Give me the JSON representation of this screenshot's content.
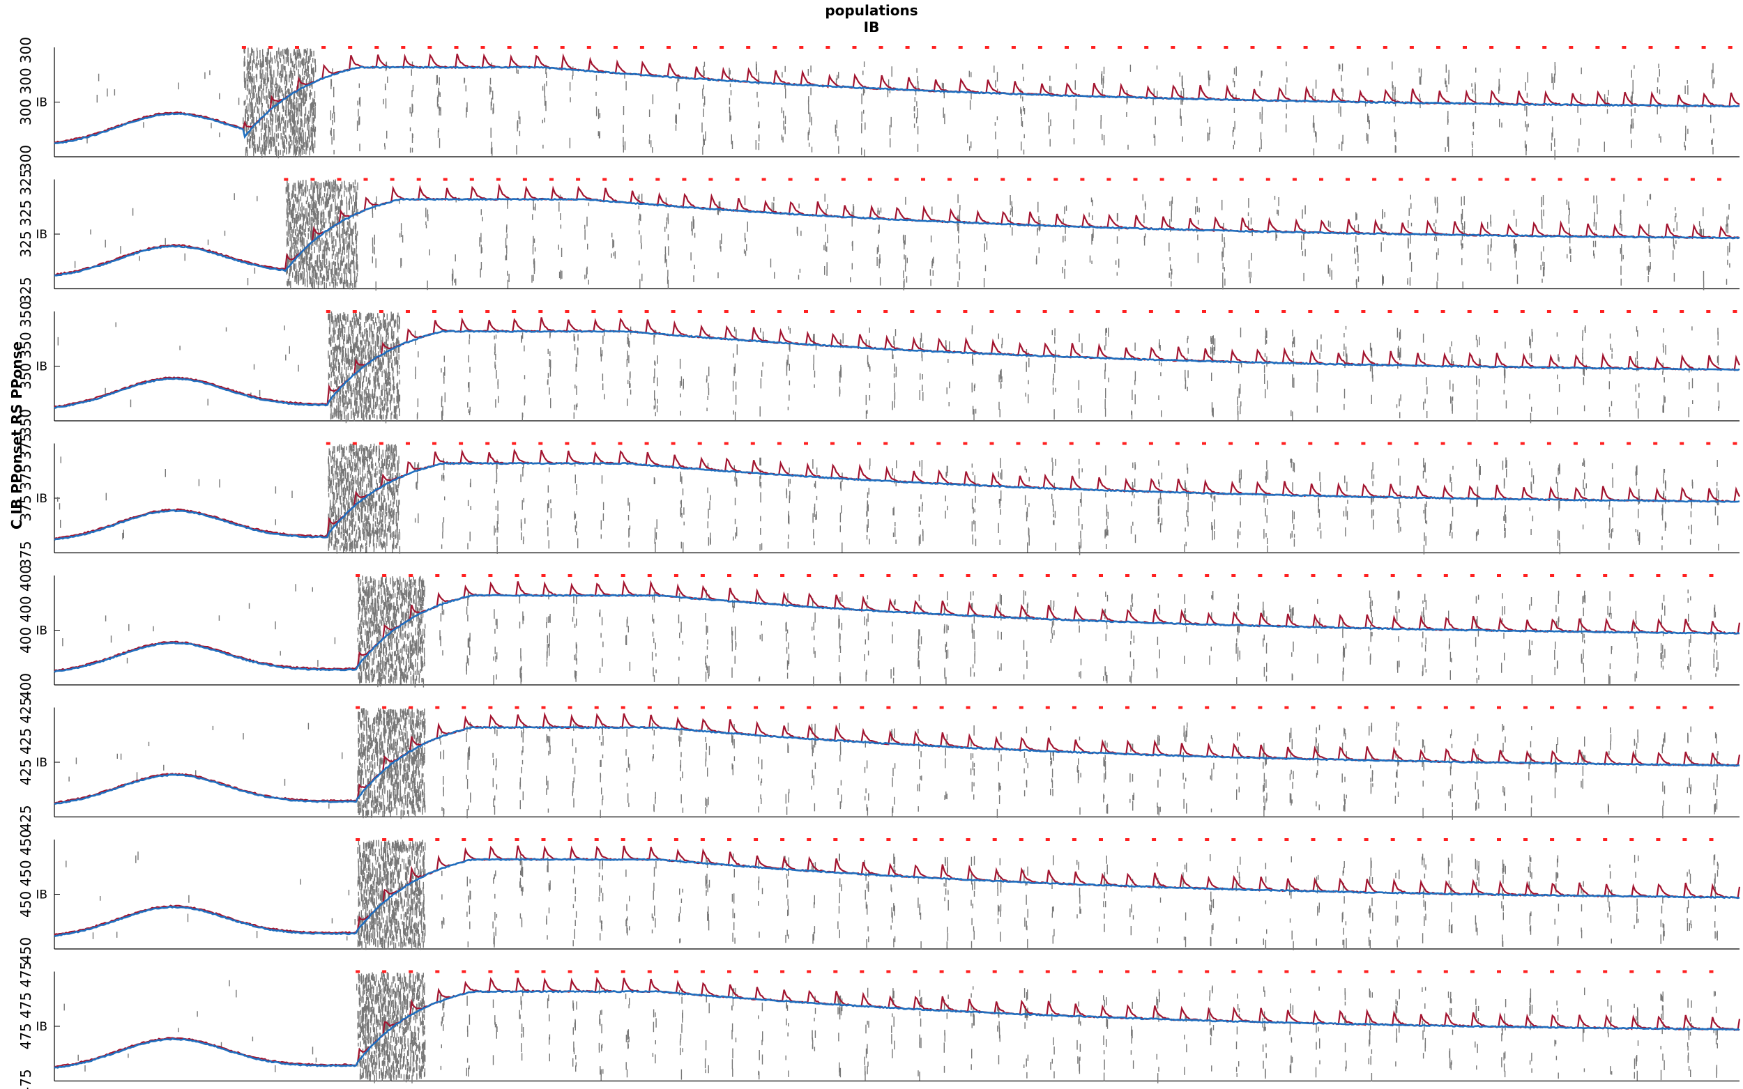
{
  "title": "populations",
  "subtitle": "IB",
  "ylabel": "C IB PPonset RS PPonse",
  "colors": {
    "raster": "#777777",
    "mean_line": "#a2142f",
    "smooth_line": "#1f6fbf",
    "onset_markers": "#ff2020",
    "axis": "#000000"
  },
  "chart_data": {
    "type": "raster",
    "x_range": [
      0,
      4000
    ],
    "y_range": [
      0,
      1
    ],
    "ytick_label": "IB",
    "panel_count": 8,
    "panels": [
      {
        "label": "300",
        "side_labels": [
          "300",
          "300 300",
          "300"
        ],
        "burst_start": 450,
        "burst_end": 620
      },
      {
        "label": "325",
        "side_labels": [
          "325",
          "325 325",
          "325"
        ],
        "burst_start": 550,
        "burst_end": 720
      },
      {
        "label": "350",
        "side_labels": [
          "350",
          "350 350",
          "350"
        ],
        "burst_start": 650,
        "burst_end": 820
      },
      {
        "label": "375",
        "side_labels": [
          "375",
          "375 375",
          "375"
        ],
        "burst_start": 650,
        "burst_end": 820
      },
      {
        "label": "400",
        "side_labels": [
          "400",
          "400 400",
          "400"
        ],
        "burst_start": 720,
        "burst_end": 880
      },
      {
        "label": "425",
        "side_labels": [
          "425",
          "425 425",
          "425"
        ],
        "burst_start": 720,
        "burst_end": 880
      },
      {
        "label": "450",
        "side_labels": [
          "450",
          "450 450",
          "450"
        ],
        "burst_start": 720,
        "burst_end": 880
      },
      {
        "label": "475",
        "side_labels": [
          "475",
          "475 475",
          "475"
        ],
        "burst_start": 720,
        "burst_end": 880
      }
    ],
    "onset_period": 63,
    "series": [
      {
        "name": "population mean (red)"
      },
      {
        "name": "smoothed mean (blue)"
      },
      {
        "name": "onset markers (red dots)"
      }
    ]
  }
}
